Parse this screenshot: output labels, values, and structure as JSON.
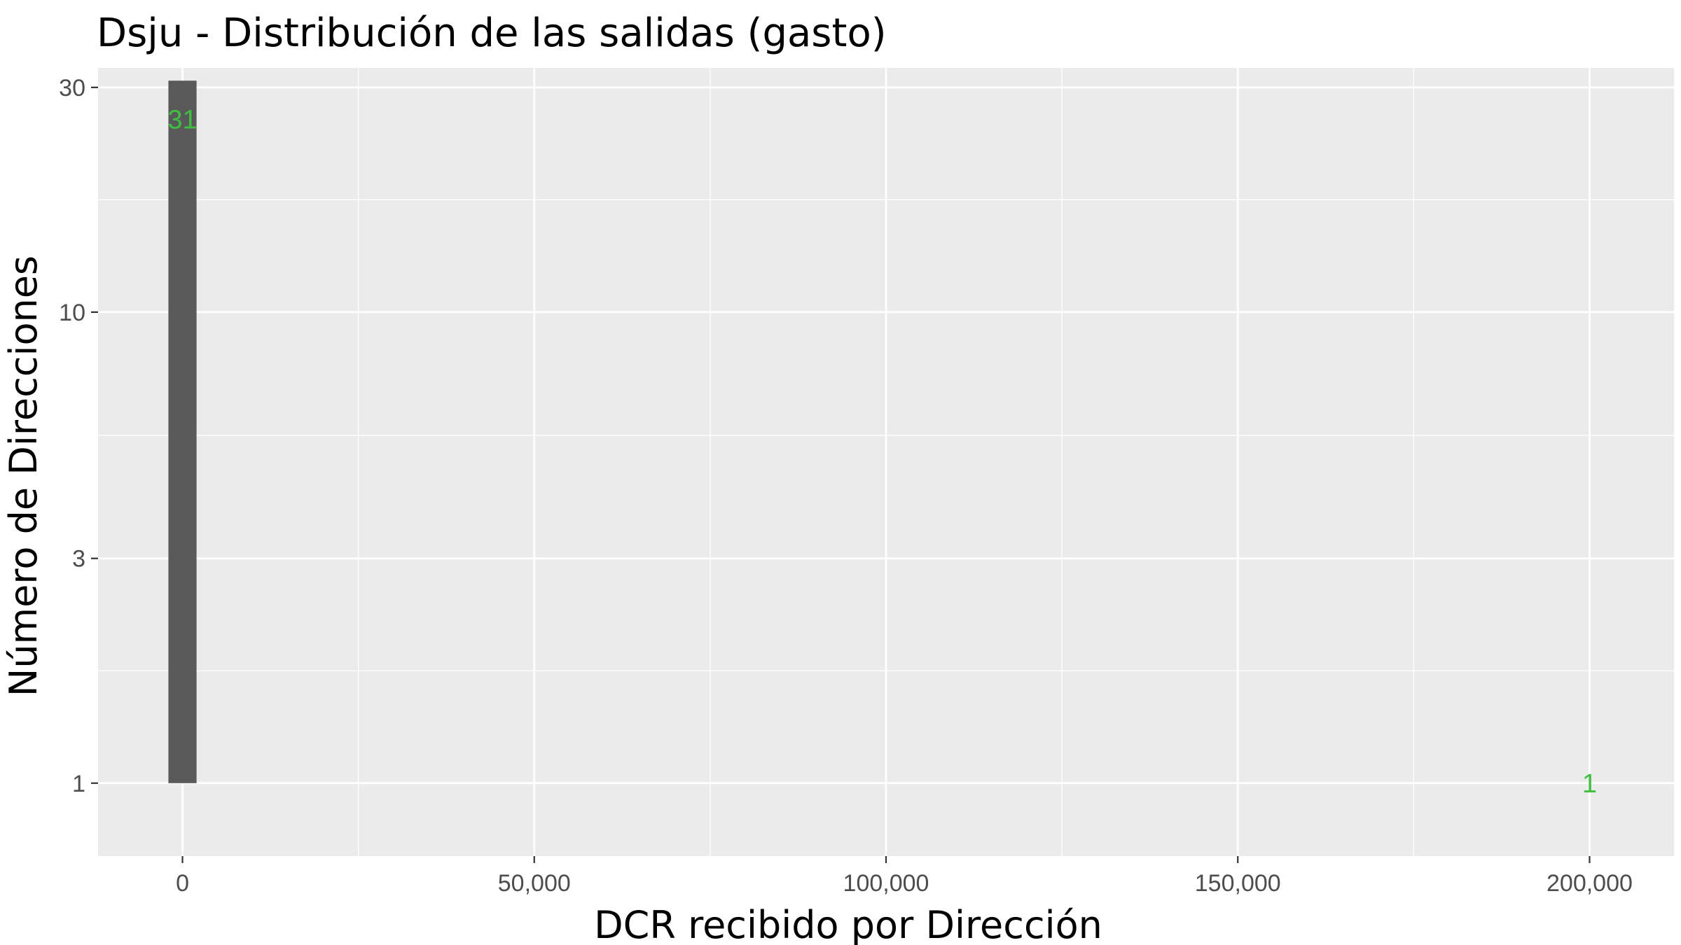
{
  "chart_data": {
    "type": "bar",
    "title": "Dsju - Distribución de las salidas (gasto)",
    "xlabel": "DCR recibido por Dirección",
    "ylabel": "Número de Direcciones",
    "x_scale": "linear",
    "y_scale": "log10",
    "xlim": [
      -12000,
      212000
    ],
    "ylim": [
      0.7,
      33
    ],
    "x_ticks": [
      0,
      50000,
      100000,
      150000,
      200000
    ],
    "x_tick_labels": [
      "0",
      "50,000",
      "100,000",
      "150,000",
      "200,000"
    ],
    "x_minor_ticks": [
      25000,
      75000,
      125000,
      175000
    ],
    "y_ticks": [
      1,
      3,
      10,
      30
    ],
    "y_tick_labels": [
      "1",
      "3",
      "10",
      "30"
    ],
    "y_minor_ticks": [
      1.732,
      5.477,
      17.32
    ],
    "bins": [
      {
        "x": 0,
        "count": 31,
        "label": "31"
      },
      {
        "x": 200000,
        "count": 1,
        "label": "1"
      }
    ],
    "bin_width": 4000,
    "grid": true,
    "colors": {
      "panel": "#ebebeb",
      "grid": "#ffffff",
      "bar": "#595959",
      "label": "#3fbf3f",
      "tick": "#4d4d4d"
    }
  }
}
